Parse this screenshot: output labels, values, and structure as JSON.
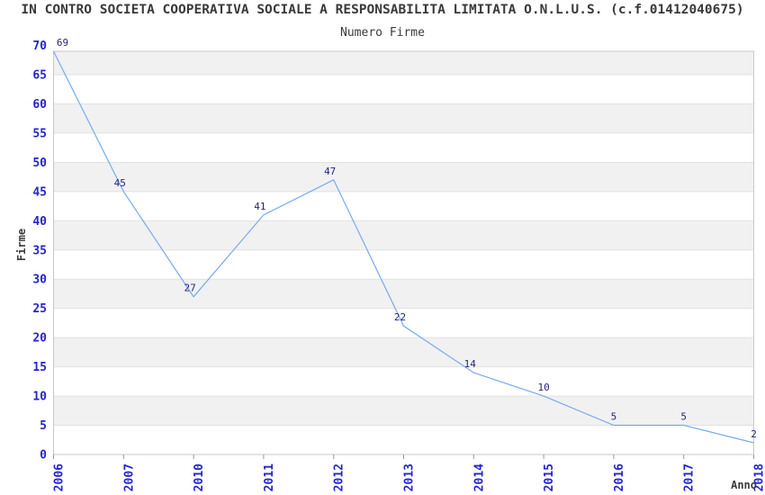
{
  "chart_data": {
    "type": "line",
    "title": "IN CONTRO SOCIETA COOPERATIVA SOCIALE A RESPONSABILITA LIMITATA O.N.L.U.S. (c.f.01412040675)",
    "subtitle": "Numero Firme",
    "xlabel": "Anno",
    "ylabel": "Firme",
    "categories": [
      "2006",
      "2007",
      "2010",
      "2011",
      "2012",
      "2013",
      "2014",
      "2015",
      "2016",
      "2017",
      "2018"
    ],
    "values": [
      69,
      45,
      27,
      41,
      47,
      22,
      14,
      10,
      5,
      5,
      2
    ],
    "ylim": [
      0,
      69
    ],
    "ytick_step": 5,
    "ytick_top": 70,
    "grid": "horizontal-alternating-bands",
    "legend": "none",
    "markers": "none",
    "colors": {
      "line": "#76aaf0",
      "band": "#f1f1f1",
      "gridline": "#e1e1e1",
      "plot_border": "#c9c9c9",
      "tick_mark": "#999999",
      "tick_label": "#2525cd",
      "data_label": "#26267d",
      "text": "#3a3a3a",
      "background": "#ffffff"
    }
  }
}
